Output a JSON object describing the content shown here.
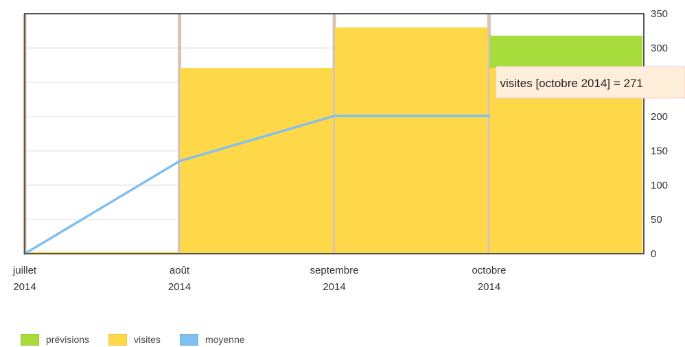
{
  "chart_data": {
    "type": "bar",
    "categories": [
      "juillet 2014",
      "août 2014",
      "septembre 2014",
      "octobre 2014"
    ],
    "x_tick_labels": [
      [
        "juillet",
        "2014"
      ],
      [
        "août",
        "2014"
      ],
      [
        "septembre",
        "2014"
      ],
      [
        "octobre",
        "2014"
      ]
    ],
    "ylim": [
      0,
      350
    ],
    "yticks": [
      0,
      50,
      100,
      150,
      200,
      250,
      300,
      350
    ],
    "y_axis_position": "right",
    "grid": true,
    "legend_position": "bottom-left",
    "series": [
      {
        "name": "prévisions",
        "type": "bar",
        "stacked_on": "visites",
        "color": "#a8dc3c",
        "values": [
          0,
          0,
          0,
          47
        ]
      },
      {
        "name": "visites",
        "type": "bar",
        "color": "#ffd84a",
        "values": [
          3,
          271,
          330,
          271
        ]
      },
      {
        "name": "moyenne",
        "type": "line",
        "color": "#7ec0f0",
        "values": [
          0,
          135,
          201,
          201
        ]
      }
    ],
    "tooltip": {
      "text": "visites  [octobre 2014] = 271",
      "series": "visites",
      "category": "octobre 2014",
      "value": 271
    }
  }
}
